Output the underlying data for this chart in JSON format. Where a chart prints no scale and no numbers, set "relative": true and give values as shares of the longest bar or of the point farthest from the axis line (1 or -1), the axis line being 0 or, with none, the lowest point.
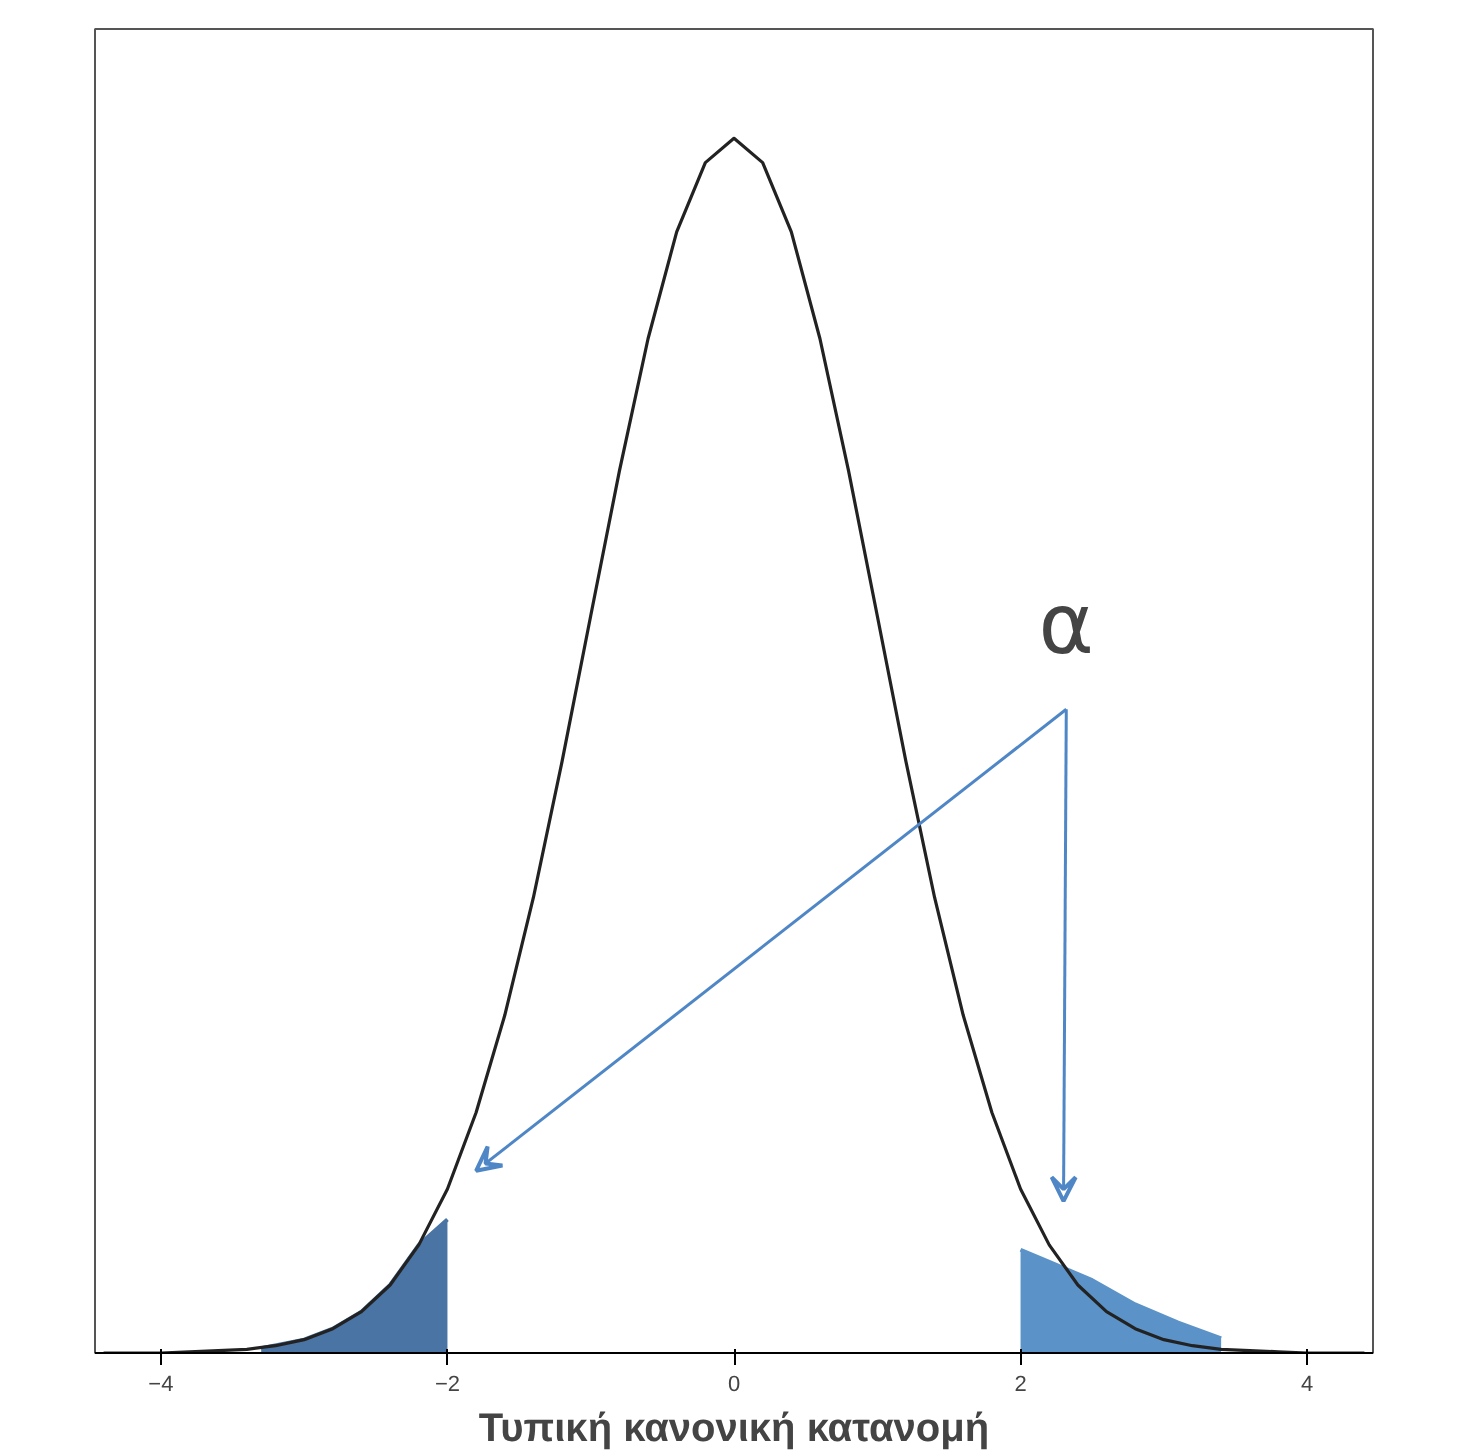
{
  "chart_data": {
    "type": "line",
    "relative": true,
    "xlabel": "Τυπική κανονική κατανομή",
    "xlim": [
      -4.46,
      4.46
    ],
    "xticks": [
      -4,
      -2,
      0,
      2,
      4
    ],
    "grid": false,
    "series": [
      {
        "color": "#222222",
        "x": [
          -4.4,
          -4.2,
          -4.0,
          -3.8,
          -3.6,
          -3.4,
          -3.2,
          -3.0,
          -2.8,
          -2.6,
          -2.4,
          -2.2,
          -2.0,
          -1.8,
          -1.6,
          -1.4,
          -1.2,
          -1.0,
          -0.8,
          -0.6,
          -0.4,
          -0.2,
          0,
          0.2,
          0.4,
          0.6,
          0.8,
          1.0,
          1.2,
          1.4,
          1.6,
          1.8,
          2.0,
          2.2,
          2.4,
          2.6,
          2.8,
          3.0,
          3.2,
          3.4,
          3.6,
          3.8,
          4.0,
          4.2,
          4.4
        ],
        "values": [
          0,
          0,
          0,
          0.001,
          0.002,
          0.003,
          0.006,
          0.011,
          0.02,
          0.034,
          0.056,
          0.089,
          0.135,
          0.198,
          0.278,
          0.375,
          0.487,
          0.607,
          0.726,
          0.835,
          0.923,
          0.98,
          1,
          0.98,
          0.923,
          0.835,
          0.726,
          0.607,
          0.487,
          0.375,
          0.278,
          0.198,
          0.135,
          0.089,
          0.056,
          0.034,
          0.02,
          0.011,
          0.006,
          0.003,
          0.002,
          0.001,
          0,
          0,
          0
        ]
      },
      {
        "type": "area",
        "color": "#4a74a4",
        "x": [
          -3.3,
          -3.0,
          -2.8,
          -2.6,
          -2.4,
          -2.2,
          -2.0
        ],
        "values": [
          0.004,
          0.011,
          0.02,
          0.034,
          0.056,
          0.089,
          0.11
        ]
      },
      {
        "type": "area",
        "color": "#5b93c9",
        "x": [
          2.0,
          2.2,
          2.5,
          2.8,
          3.1,
          3.4
        ],
        "values": [
          0.085,
          0.075,
          0.06,
          0.04,
          0.025,
          0.012
        ]
      }
    ],
    "annotations": [
      "α"
    ]
  }
}
